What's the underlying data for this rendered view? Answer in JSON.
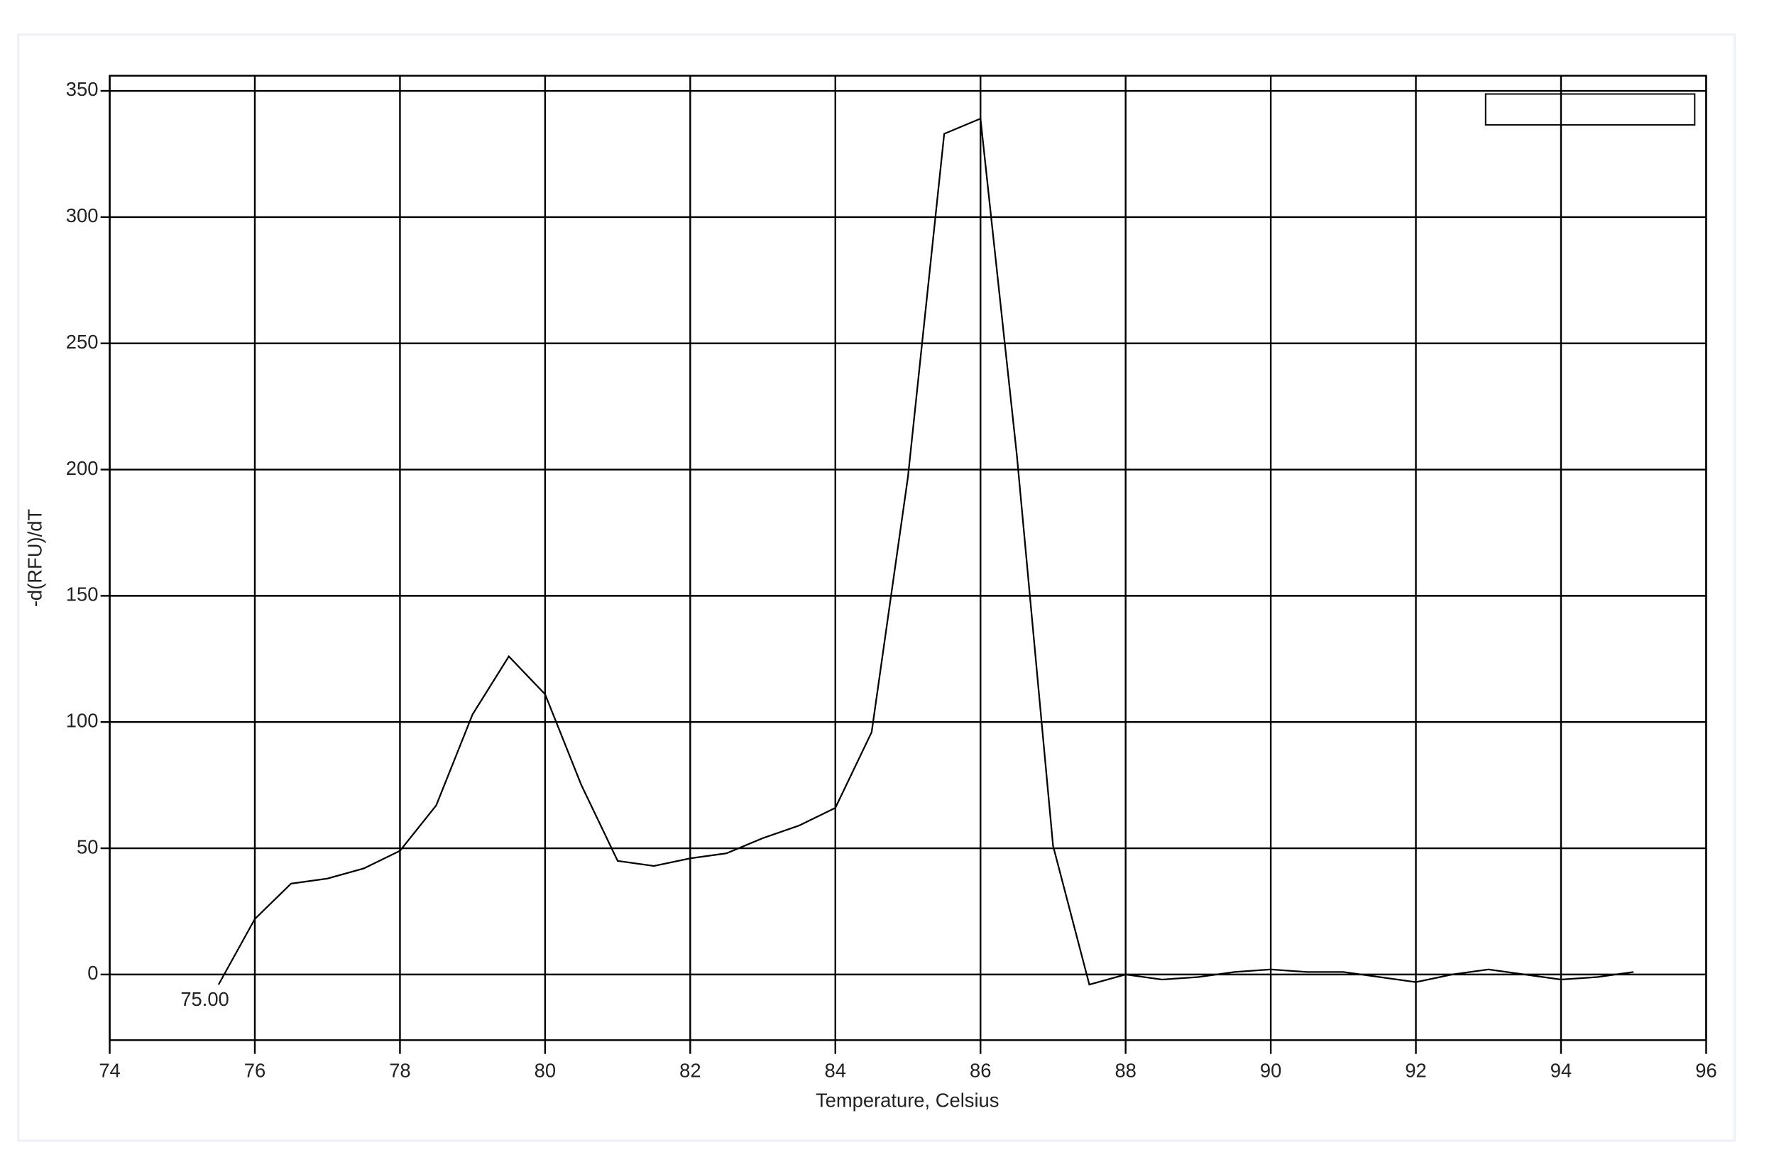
{
  "chart_data": {
    "type": "line",
    "x_label": "Temperature, Celsius",
    "y_label": "-d(RFU)/dT",
    "annotation": "75.00",
    "x": [
      75.5,
      76,
      76.5,
      77,
      77.5,
      78,
      78.5,
      79,
      79.5,
      80,
      80.5,
      81,
      81.5,
      82,
      82.5,
      83,
      83.5,
      84,
      84.5,
      85,
      85.5,
      86,
      86.5,
      87,
      87.5,
      88,
      88.5,
      89,
      89.5,
      90,
      90.5,
      91,
      91.5,
      92,
      92.5,
      93,
      93.5,
      94,
      94.5,
      95
    ],
    "series": [
      {
        "color": "#000000",
        "values": [
          -4,
          22,
          36,
          38,
          42,
          49,
          67,
          103,
          126,
          111,
          75,
          45,
          43,
          46,
          48,
          54,
          59,
          66,
          96,
          197,
          333,
          339,
          206,
          51,
          -4,
          0,
          -2,
          -1,
          1,
          2,
          1,
          1,
          -1,
          -3,
          0,
          2,
          0,
          -2,
          -1,
          1
        ]
      }
    ],
    "xlim": [
      74,
      96
    ],
    "ylim": [
      -26,
      356
    ],
    "xticks": [
      74,
      76,
      78,
      80,
      82,
      84,
      86,
      88,
      90,
      92,
      94,
      96
    ],
    "yticks": [
      0,
      50,
      100,
      150,
      200,
      250,
      300,
      350
    ],
    "grid": true
  }
}
